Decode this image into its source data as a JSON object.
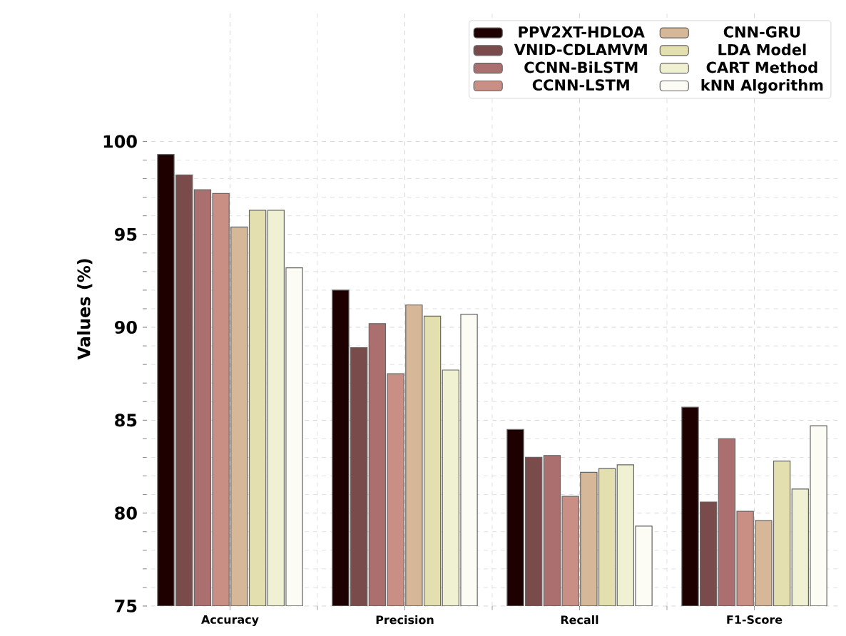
{
  "chart_data": {
    "type": "bar",
    "ylabel": "Values (%)",
    "categories": [
      "Accuracy",
      "Precision",
      "Recall",
      "F1-Score"
    ],
    "series": [
      {
        "name": "PPV2XT-HDLOA",
        "color": "#1f0000",
        "values": [
          99.3,
          92.0,
          84.5,
          85.7
        ]
      },
      {
        "name": "VNID-CDLAMVM",
        "color": "#7a4b4b",
        "values": [
          98.2,
          88.9,
          83.0,
          80.6
        ]
      },
      {
        "name": "CCNN-BiLSTM",
        "color": "#ab6f6f",
        "values": [
          97.4,
          90.2,
          83.1,
          84.0
        ]
      },
      {
        "name": "CCNN-LSTM",
        "color": "#c98f85",
        "values": [
          97.2,
          87.5,
          80.9,
          80.1
        ]
      },
      {
        "name": "CNN-GRU",
        "color": "#d6b898",
        "values": [
          95.4,
          91.2,
          82.2,
          79.6
        ]
      },
      {
        "name": "LDA Model",
        "color": "#e3dfae",
        "values": [
          96.3,
          90.6,
          82.4,
          82.8
        ]
      },
      {
        "name": "CART Method",
        "color": "#f0f0d2",
        "values": [
          96.3,
          87.7,
          82.6,
          81.3
        ]
      },
      {
        "name": "kNN Algorithm",
        "color": "#fcfcf5",
        "values": [
          93.2,
          90.7,
          79.3,
          84.7
        ]
      }
    ],
    "ylim": [
      75,
      107
    ],
    "yticks": [
      75,
      80,
      85,
      90,
      95,
      100
    ],
    "grid": true,
    "legend": "top right"
  }
}
